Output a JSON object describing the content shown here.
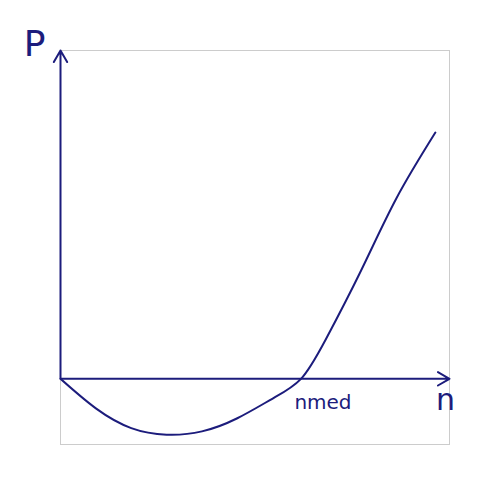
{
  "chart_data": {
    "type": "line",
    "x_label": "n",
    "y_label": "P",
    "x": [
      0,
      1,
      2,
      3,
      4,
      5,
      6,
      6.8,
      7.5,
      8.5,
      9.5,
      10.6
    ],
    "values": [
      0,
      -0.9,
      -1.5,
      -1.7,
      -1.6,
      -1.2,
      -0.6,
      0,
      1.2,
      3.3,
      5.5,
      7.5
    ],
    "color": "#1c1c7c",
    "xlim": [
      0,
      11
    ],
    "ylim": [
      -2,
      10
    ],
    "xticks": [],
    "yticks": [],
    "tick_labels": false,
    "annotations": [
      {
        "text": "nmed",
        "x": 6.8,
        "y": 0
      }
    ]
  }
}
